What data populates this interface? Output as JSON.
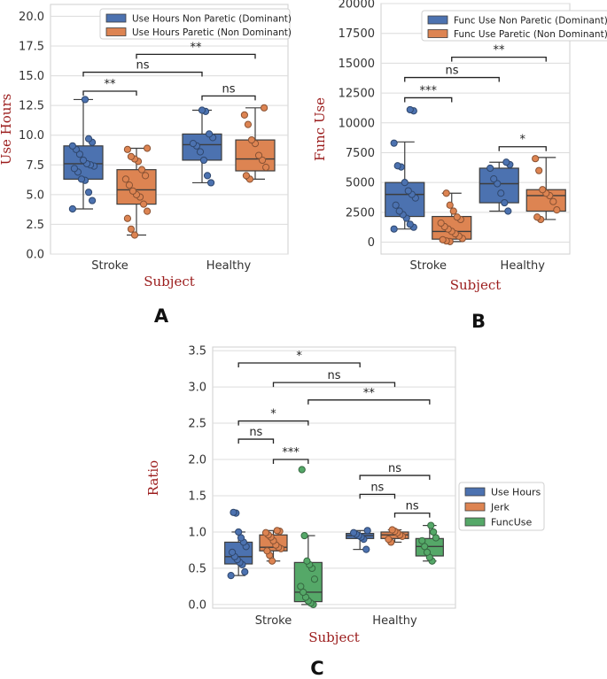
{
  "colors": {
    "blue": "#4c72b0",
    "orange": "#dd8452",
    "green": "#55a868",
    "axis_label": "#9b1c1c",
    "grid": "#dcdcdc"
  },
  "chart_data": [
    {
      "panel": "A",
      "type": "box",
      "xlabel": "Subject",
      "ylabel": "Use Hours",
      "categories": [
        "Stroke",
        "Healthy"
      ],
      "ylim": [
        0,
        21
      ],
      "yticks": [
        0.0,
        2.5,
        5.0,
        7.5,
        10.0,
        12.5,
        15.0,
        17.5,
        20.0
      ],
      "ytick_labels": [
        "0.0",
        "2.5",
        "5.0",
        "7.5",
        "10.0",
        "12.5",
        "15.0",
        "17.5",
        "20.0"
      ],
      "legend": [
        "Use Hours Non Paretic (Dominant)",
        "Use Hours Paretic (Non Dominant)"
      ],
      "series": [
        {
          "name": "Use Hours Non Paretic (Dominant)",
          "color": "blue",
          "boxes": [
            {
              "min": 3.8,
              "q1": 6.3,
              "median": 7.6,
              "q3": 9.1,
              "max": 13.0,
              "points": [
                3.8,
                4.5,
                5.2,
                6.2,
                6.3,
                6.9,
                7.2,
                7.4,
                7.5,
                7.6,
                7.9,
                8.4,
                8.8,
                9.1,
                9.4,
                9.7,
                13.0
              ]
            },
            {
              "min": 6.0,
              "q1": 7.9,
              "median": 9.2,
              "q3": 10.1,
              "max": 12.1,
              "points": [
                6.0,
                6.6,
                7.9,
                8.6,
                9.1,
                9.3,
                9.8,
                10.1,
                12.0,
                12.1
              ]
            }
          ]
        },
        {
          "name": "Use Hours Paretic (Non Dominant)",
          "color": "orange",
          "boxes": [
            {
              "min": 1.6,
              "q1": 4.2,
              "median": 5.4,
              "q3": 7.1,
              "max": 8.9,
              "points": [
                1.6,
                2.1,
                3.0,
                3.6,
                4.2,
                4.8,
                5.0,
                5.3,
                5.8,
                6.3,
                6.6,
                7.1,
                7.8,
                8.0,
                8.2,
                8.8,
                8.9
              ]
            },
            {
              "min": 6.3,
              "q1": 7.0,
              "median": 8.0,
              "q3": 9.6,
              "max": 12.3,
              "points": [
                6.3,
                6.6,
                7.3,
                7.9,
                8.3,
                9.3,
                9.6,
                10.9,
                11.7,
                12.3
              ]
            }
          ]
        }
      ],
      "significance": [
        {
          "from": [
            0,
            0
          ],
          "to": [
            0,
            1
          ],
          "label": "**",
          "y": 13.7
        },
        {
          "from": [
            1,
            0
          ],
          "to": [
            1,
            1
          ],
          "label": "ns",
          "y": 13.3
        },
        {
          "from": [
            0,
            0
          ],
          "to": [
            1,
            0
          ],
          "label": "ns",
          "y": 15.3
        },
        {
          "from": [
            0,
            1
          ],
          "to": [
            1,
            1
          ],
          "label": "**",
          "y": 16.8
        }
      ]
    },
    {
      "panel": "B",
      "type": "box",
      "xlabel": "Subject",
      "ylabel": "Func Use",
      "categories": [
        "Stroke",
        "Healthy"
      ],
      "ylim": [
        -1000,
        20000
      ],
      "yticks": [
        0,
        2500,
        5000,
        7500,
        10000,
        12500,
        15000,
        17500,
        20000
      ],
      "ytick_labels": [
        "0",
        "2500",
        "5000",
        "7500",
        "10000",
        "12500",
        "15000",
        "17500",
        "20000"
      ],
      "legend": [
        "Func Use Non Paretic (Dominant)",
        "Func Use Paretic (Non Dominant)"
      ],
      "series": [
        {
          "name": "Func Use Non Paretic (Dominant)",
          "color": "blue",
          "boxes": [
            {
              "min": 1100,
              "q1": 2150,
              "median": 4000,
              "q3": 5000,
              "max": 8400,
              "points": [
                1100,
                1250,
                1500,
                2000,
                2300,
                2600,
                3100,
                3700,
                4000,
                4300,
                5000,
                6300,
                6400,
                8300,
                11000,
                11100
              ]
            },
            {
              "min": 2600,
              "q1": 3300,
              "median": 4900,
              "q3": 6200,
              "max": 6700,
              "points": [
                2600,
                3300,
                4100,
                4900,
                5300,
                6200,
                6500,
                6700
              ]
            }
          ]
        },
        {
          "name": "Func Use Paretic (Non Dominant)",
          "color": "orange",
          "boxes": [
            {
              "min": 50,
              "q1": 250,
              "median": 900,
              "q3": 2150,
              "max": 4100,
              "points": [
                50,
                100,
                200,
                300,
                500,
                700,
                900,
                1100,
                1300,
                1600,
                1900,
                2100,
                2600,
                3100,
                4100
              ]
            },
            {
              "min": 1900,
              "q1": 2600,
              "median": 3900,
              "q3": 4400,
              "max": 7100,
              "points": [
                1900,
                2100,
                2700,
                3400,
                3900,
                4100,
                4400,
                6000,
                7000
              ]
            }
          ]
        }
      ],
      "significance": [
        {
          "from": [
            0,
            0
          ],
          "to": [
            0,
            1
          ],
          "label": "***",
          "y": 12100
        },
        {
          "from": [
            1,
            0
          ],
          "to": [
            1,
            1
          ],
          "label": "*",
          "y": 8000
        },
        {
          "from": [
            0,
            0
          ],
          "to": [
            1,
            0
          ],
          "label": "ns",
          "y": 13800
        },
        {
          "from": [
            0,
            1
          ],
          "to": [
            1,
            1
          ],
          "label": "**",
          "y": 15500
        }
      ]
    },
    {
      "panel": "C",
      "type": "box",
      "xlabel": "Subject",
      "ylabel": "Ratio",
      "categories": [
        "Stroke",
        "Healthy"
      ],
      "ylim": [
        -0.05,
        3.55
      ],
      "yticks": [
        0.0,
        0.5,
        1.0,
        1.5,
        2.0,
        2.5,
        3.0,
        3.5
      ],
      "ytick_labels": [
        "0.0",
        "0.5",
        "1.0",
        "1.5",
        "2.0",
        "2.5",
        "3.0",
        "3.5"
      ],
      "legend": [
        "Use Hours",
        "Jerk",
        "FuncUse"
      ],
      "series": [
        {
          "name": "Use Hours",
          "color": "blue",
          "boxes": [
            {
              "min": 0.4,
              "q1": 0.56,
              "median": 0.66,
              "q3": 0.86,
              "max": 1.0,
              "points": [
                0.4,
                0.45,
                0.55,
                0.58,
                0.62,
                0.66,
                0.72,
                0.8,
                0.86,
                0.92,
                1.0,
                1.26,
                1.27
              ]
            },
            {
              "min": 0.76,
              "q1": 0.91,
              "median": 0.95,
              "q3": 0.98,
              "max": 1.02,
              "points": [
                0.76,
                0.9,
                0.93,
                0.95,
                0.97,
                0.99,
                1.02
              ]
            }
          ]
        },
        {
          "name": "Jerk",
          "color": "orange",
          "boxes": [
            {
              "min": 0.6,
              "q1": 0.74,
              "median": 0.79,
              "q3": 0.96,
              "max": 1.02,
              "points": [
                0.6,
                0.68,
                0.74,
                0.77,
                0.79,
                0.82,
                0.88,
                0.93,
                0.96,
                0.99,
                1.01,
                1.02
              ]
            },
            {
              "min": 0.86,
              "q1": 0.91,
              "median": 0.96,
              "q3": 1.0,
              "max": 1.03,
              "points": [
                0.86,
                0.9,
                0.94,
                0.96,
                0.99,
                1.01,
                1.03
              ]
            }
          ]
        },
        {
          "name": "FuncUse",
          "color": "green",
          "boxes": [
            {
              "min": 0.0,
              "q1": 0.04,
              "median": 0.17,
              "q3": 0.58,
              "max": 0.95,
              "points": [
                0.0,
                0.02,
                0.05,
                0.1,
                0.17,
                0.25,
                0.35,
                0.5,
                0.55,
                0.6,
                0.95,
                1.86
              ]
            },
            {
              "min": 0.6,
              "q1": 0.67,
              "median": 0.8,
              "q3": 0.91,
              "max": 1.09,
              "points": [
                0.6,
                0.65,
                0.72,
                0.8,
                0.88,
                0.92,
                1.0,
                1.09
              ]
            }
          ]
        }
      ],
      "significance": [
        {
          "from": [
            0,
            0
          ],
          "to": [
            1,
            0
          ],
          "label": "*",
          "y": 3.33
        },
        {
          "from": [
            0,
            1
          ],
          "to": [
            1,
            1
          ],
          "label": "ns",
          "y": 3.06
        },
        {
          "from": [
            0,
            2
          ],
          "to": [
            1,
            2
          ],
          "label": "**",
          "y": 2.82
        },
        {
          "from": [
            0,
            0
          ],
          "to": [
            0,
            2
          ],
          "label": "*",
          "y": 2.53
        },
        {
          "from": [
            0,
            0
          ],
          "to": [
            0,
            1
          ],
          "label": "ns",
          "y": 2.28
        },
        {
          "from": [
            0,
            1
          ],
          "to": [
            0,
            2
          ],
          "label": "***",
          "y": 2.0
        },
        {
          "from": [
            1,
            0
          ],
          "to": [
            1,
            2
          ],
          "label": "ns",
          "y": 1.78
        },
        {
          "from": [
            1,
            0
          ],
          "to": [
            1,
            1
          ],
          "label": "ns",
          "y": 1.52
        },
        {
          "from": [
            1,
            1
          ],
          "to": [
            1,
            2
          ],
          "label": "ns",
          "y": 1.26
        }
      ]
    }
  ]
}
